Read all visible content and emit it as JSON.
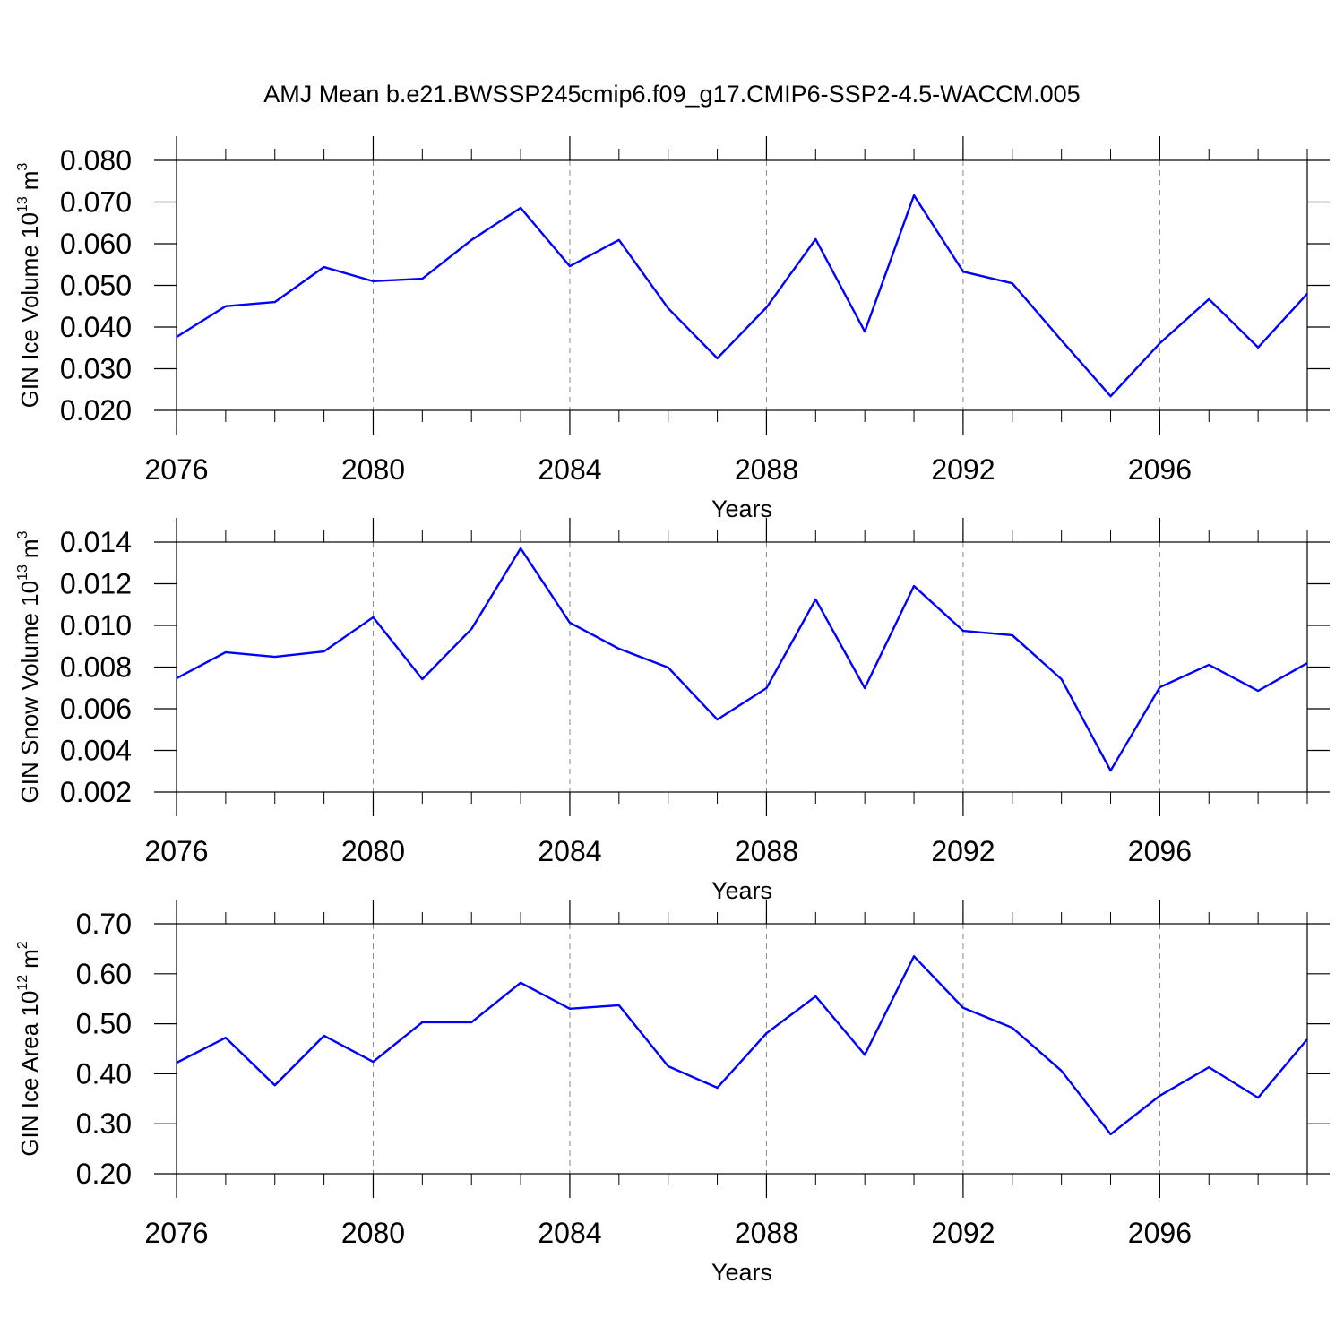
{
  "title": "AMJ Mean b.e21.BWSSP245cmip6.f09_g17.CMIP6-SSP2-4.5-WACCM.005",
  "chart_data": [
    {
      "type": "line",
      "ylabel": {
        "text": "GIN Ice Volume 10",
        "exp": "13",
        "unit": "m",
        "unit_exp": "3"
      },
      "xlabel": "Years",
      "x": [
        2076,
        2077,
        2078,
        2079,
        2080,
        2081,
        2082,
        2083,
        2084,
        2085,
        2086,
        2087,
        2088,
        2089,
        2090,
        2091,
        2092,
        2093,
        2094,
        2095,
        2096,
        2097,
        2098,
        2099
      ],
      "series": [
        {
          "color": "#0000ff",
          "values": [
            0.0376,
            0.045,
            0.046,
            0.0544,
            0.051,
            0.0516,
            0.0609,
            0.0686,
            0.0546,
            0.0609,
            0.0445,
            0.0325,
            0.0447,
            0.0611,
            0.0389,
            0.0716,
            0.0533,
            0.0505,
            0.0368,
            0.0234,
            0.0361,
            0.0467,
            0.0351,
            0.048
          ]
        }
      ],
      "xlim": [
        2076,
        2099
      ],
      "xticks": [
        2076,
        2080,
        2084,
        2088,
        2092,
        2096
      ],
      "ylim": [
        0.02,
        0.08
      ],
      "yticks": [
        {
          "value": 0.02,
          "label": "0.020"
        },
        {
          "value": 0.03,
          "label": "0.030"
        },
        {
          "value": 0.04,
          "label": "0.040"
        },
        {
          "value": 0.05,
          "label": "0.050"
        },
        {
          "value": 0.06,
          "label": "0.060"
        },
        {
          "value": 0.07,
          "label": "0.070"
        },
        {
          "value": 0.08,
          "label": "0.080"
        }
      ],
      "grid": "x"
    },
    {
      "type": "line",
      "ylabel": {
        "text": "GIN Snow Volume 10",
        "exp": "13",
        "unit": "m",
        "unit_exp": "3"
      },
      "xlabel": "Years",
      "x": [
        2076,
        2077,
        2078,
        2079,
        2080,
        2081,
        2082,
        2083,
        2084,
        2085,
        2086,
        2087,
        2088,
        2089,
        2090,
        2091,
        2092,
        2093,
        2094,
        2095,
        2096,
        2097,
        2098,
        2099
      ],
      "series": [
        {
          "color": "#0000ff",
          "values": [
            0.00746,
            0.00871,
            0.00849,
            0.00875,
            0.01039,
            0.00742,
            0.00983,
            0.0137,
            0.01013,
            0.00888,
            0.00798,
            0.00548,
            0.00699,
            0.01125,
            0.00699,
            0.01189,
            0.00974,
            0.00953,
            0.00742,
            0.00303,
            0.00703,
            0.00811,
            0.00686,
            0.00819
          ]
        }
      ],
      "xlim": [
        2076,
        2099
      ],
      "xticks": [
        2076,
        2080,
        2084,
        2088,
        2092,
        2096
      ],
      "ylim": [
        0.002,
        0.014
      ],
      "yticks": [
        0.002,
        0.004,
        0.006,
        0.008,
        {
          "value": 0.01,
          "label": "0.010"
        },
        0.012,
        0.014
      ],
      "grid": "x"
    },
    {
      "type": "line",
      "ylabel": {
        "text": "GIN Ice Area 10",
        "exp": "12",
        "unit": "m",
        "unit_exp": "2"
      },
      "xlabel": "Years",
      "x": [
        2076,
        2077,
        2078,
        2079,
        2080,
        2081,
        2082,
        2083,
        2084,
        2085,
        2086,
        2087,
        2088,
        2089,
        2090,
        2091,
        2092,
        2093,
        2094,
        2095,
        2096,
        2097,
        2098,
        2099
      ],
      "series": [
        {
          "color": "#0000ff",
          "values": [
            0.422,
            0.472,
            0.377,
            0.476,
            0.424,
            0.503,
            0.503,
            0.582,
            0.53,
            0.537,
            0.415,
            0.372,
            0.481,
            0.555,
            0.438,
            0.635,
            0.532,
            0.492,
            0.406,
            0.279,
            0.356,
            0.413,
            0.352,
            0.469
          ]
        }
      ],
      "xlim": [
        2076,
        2099
      ],
      "xticks": [
        2076,
        2080,
        2084,
        2088,
        2092,
        2096
      ],
      "ylim": [
        0.2,
        0.7
      ],
      "yticks": [
        {
          "value": 0.2,
          "label": "0.20"
        },
        {
          "value": 0.3,
          "label": "0.30"
        },
        {
          "value": 0.4,
          "label": "0.40"
        },
        {
          "value": 0.5,
          "label": "0.50"
        },
        {
          "value": 0.6,
          "label": "0.60"
        },
        {
          "value": 0.7,
          "label": "0.70"
        }
      ],
      "grid": "x"
    }
  ]
}
